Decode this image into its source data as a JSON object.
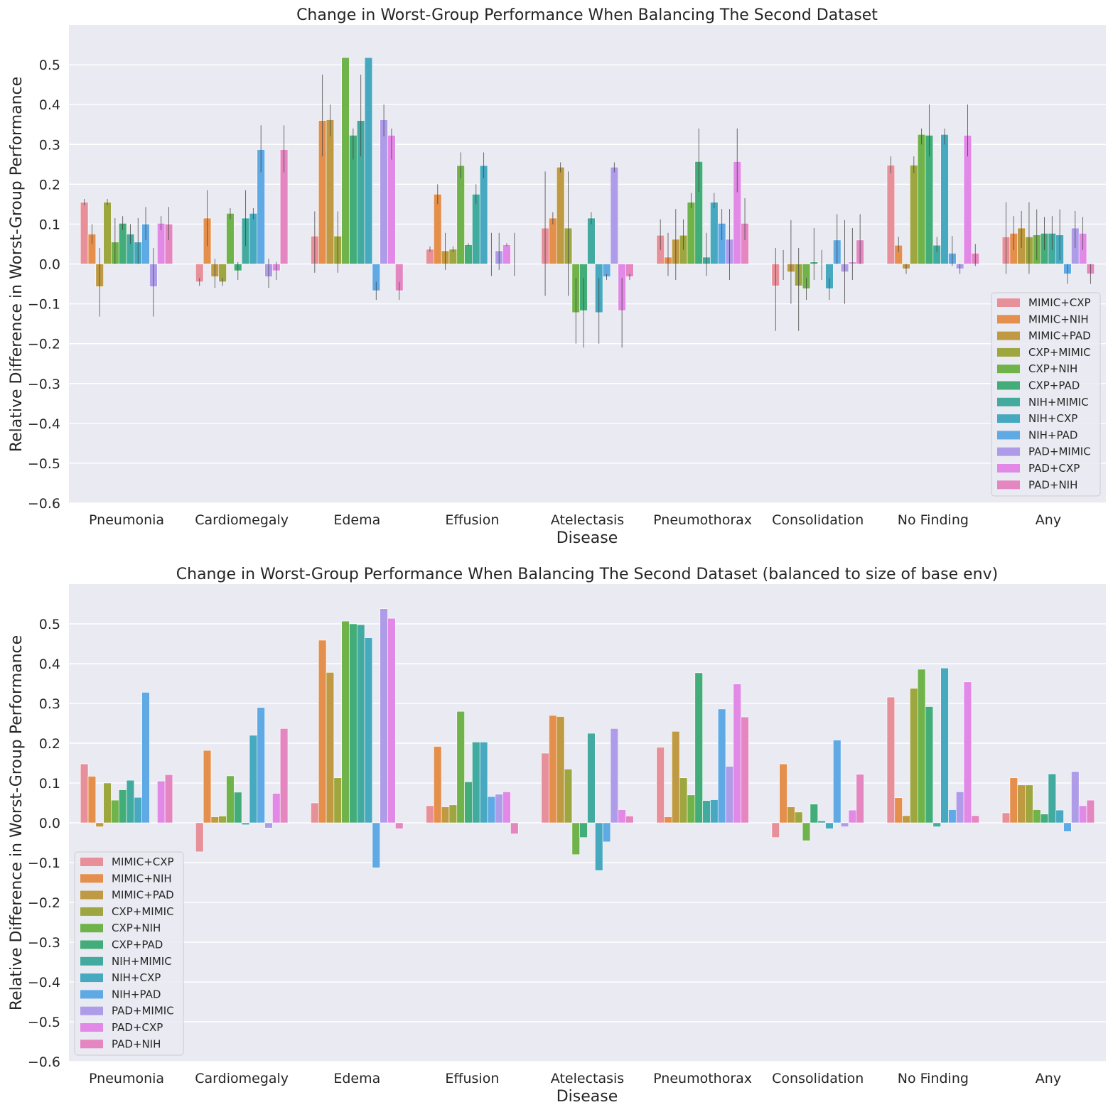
{
  "chart_data": [
    {
      "type": "bar",
      "title": "Change in Worst-Group Performance When Balancing The Second Dataset",
      "xlabel": "Disease",
      "ylabel": "Relative Difference in Worst-Group Performance",
      "ylim": [
        -0.6,
        0.6
      ],
      "yticks": [
        -0.6,
        -0.5,
        -0.4,
        -0.3,
        -0.2,
        -0.1,
        0.0,
        0.1,
        0.2,
        0.3,
        0.4,
        0.5
      ],
      "ytick_labels": [
        "−0.6",
        "−0.5",
        "−0.4",
        "−0.3",
        "−0.2",
        "−0.1",
        "0.0",
        "0.1",
        "0.2",
        "0.3",
        "0.4",
        "0.5"
      ],
      "legend_location": "lower right",
      "categories": [
        "Pneumonia",
        "Cardiomegaly",
        "Edema",
        "Effusion",
        "Atelectasis",
        "Pneumothorax",
        "Consolidation",
        "No Finding",
        "Any"
      ],
      "series": [
        {
          "name": "MIMIC+CXP",
          "values": [
            0.155,
            -0.045,
            0.07,
            0.037,
            0.09,
            0.072,
            -0.055,
            0.248,
            0.068
          ],
          "err_low": [
            0.147,
            -0.055,
            -0.022,
            0.03,
            -0.08,
            0.035,
            -0.168,
            0.228,
            -0.025
          ],
          "err_high": [
            0.163,
            -0.035,
            0.132,
            0.044,
            0.232,
            0.112,
            0.04,
            0.27,
            0.155
          ]
        },
        {
          "name": "MIMIC+NIH",
          "values": [
            0.075,
            0.115,
            0.36,
            0.175,
            0.115,
            0.017,
            0.0,
            0.047,
            0.077
          ],
          "err_low": [
            0.05,
            0.045,
            0.27,
            0.15,
            0.1,
            -0.03,
            -0.04,
            0.03,
            0.035
          ],
          "err_high": [
            0.1,
            0.185,
            0.475,
            0.2,
            0.13,
            0.078,
            0.035,
            0.068,
            0.12
          ]
        },
        {
          "name": "MIMIC+PAD",
          "values": [
            -0.057,
            -0.032,
            0.362,
            0.033,
            0.243,
            0.062,
            -0.02,
            -0.012,
            0.09
          ],
          "err_low": [
            -0.132,
            -0.06,
            0.32,
            -0.015,
            0.23,
            -0.04,
            -0.1,
            -0.025,
            0.04
          ],
          "err_high": [
            0.04,
            0.013,
            0.4,
            0.078,
            0.255,
            0.138,
            0.11,
            0.0,
            0.133
          ]
        },
        {
          "name": "CXP+MIMIC",
          "values": [
            0.155,
            -0.045,
            0.07,
            0.037,
            0.09,
            0.072,
            -0.055,
            0.248,
            0.068
          ],
          "err_low": [
            0.147,
            -0.055,
            -0.022,
            0.03,
            -0.08,
            0.035,
            -0.168,
            0.228,
            -0.025
          ],
          "err_high": [
            0.163,
            -0.035,
            0.132,
            0.044,
            0.232,
            0.112,
            0.04,
            0.27,
            0.155
          ]
        },
        {
          "name": "CXP+NIH",
          "values": [
            0.055,
            0.127,
            0.518,
            0.247,
            -0.122,
            0.155,
            -0.062,
            0.325,
            0.073
          ],
          "err_low": [
            0.0,
            0.112,
            0.59,
            0.215,
            -0.2,
            0.14,
            -0.09,
            0.3,
            0.01
          ],
          "err_high": [
            0.115,
            0.14,
            0.59,
            0.28,
            -0.035,
            0.178,
            -0.035,
            0.34,
            0.137
          ]
        },
        {
          "name": "CXP+PAD",
          "values": [
            0.102,
            -0.017,
            0.323,
            0.048,
            -0.117,
            0.257,
            0.005,
            0.323,
            0.077
          ],
          "err_low": [
            0.085,
            -0.04,
            0.262,
            0.045,
            -0.21,
            0.18,
            -0.04,
            0.27,
            0.035
          ],
          "err_high": [
            0.12,
            0.005,
            0.34,
            0.052,
            -0.035,
            0.34,
            0.09,
            0.4,
            0.118
          ]
        },
        {
          "name": "NIH+MIMIC",
          "values": [
            0.075,
            0.115,
            0.36,
            0.175,
            0.115,
            0.017,
            0.0,
            0.047,
            0.077
          ],
          "err_low": [
            0.05,
            0.045,
            0.27,
            0.15,
            0.1,
            -0.03,
            -0.04,
            0.03,
            0.035
          ],
          "err_high": [
            0.1,
            0.185,
            0.475,
            0.2,
            0.13,
            0.078,
            0.035,
            0.068,
            0.12
          ]
        },
        {
          "name": "NIH+CXP",
          "values": [
            0.055,
            0.127,
            0.518,
            0.247,
            -0.122,
            0.155,
            -0.062,
            0.325,
            0.073
          ],
          "err_low": [
            0.0,
            0.112,
            0.59,
            0.215,
            -0.2,
            0.14,
            -0.09,
            0.3,
            0.01
          ],
          "err_high": [
            0.115,
            0.14,
            0.59,
            0.28,
            -0.035,
            0.178,
            -0.035,
            0.34,
            0.137
          ]
        },
        {
          "name": "NIH+PAD",
          "values": [
            0.1,
            0.287,
            -0.067,
            0.0,
            -0.032,
            0.102,
            0.06,
            0.027,
            -0.025
          ],
          "err_low": [
            0.06,
            0.23,
            -0.09,
            -0.03,
            -0.04,
            0.06,
            0.0,
            -0.005,
            -0.05
          ],
          "err_high": [
            0.143,
            0.348,
            -0.045,
            0.078,
            -0.025,
            0.138,
            0.125,
            0.07,
            0.0
          ]
        },
        {
          "name": "PAD+MIMIC",
          "values": [
            -0.057,
            -0.032,
            0.362,
            0.033,
            0.243,
            0.062,
            -0.02,
            -0.012,
            0.09
          ],
          "err_low": [
            -0.132,
            -0.06,
            0.32,
            -0.015,
            0.23,
            -0.04,
            -0.1,
            -0.025,
            0.04
          ],
          "err_high": [
            0.04,
            0.013,
            0.4,
            0.078,
            0.255,
            0.138,
            0.11,
            0.0,
            0.133
          ]
        },
        {
          "name": "PAD+CXP",
          "values": [
            0.102,
            -0.017,
            0.323,
            0.048,
            -0.117,
            0.257,
            0.005,
            0.323,
            0.077
          ],
          "err_low": [
            0.085,
            -0.04,
            0.262,
            0.045,
            -0.21,
            0.18,
            -0.04,
            0.27,
            0.035
          ],
          "err_high": [
            0.12,
            0.005,
            0.34,
            0.052,
            -0.035,
            0.34,
            0.09,
            0.4,
            0.118
          ]
        },
        {
          "name": "PAD+NIH",
          "values": [
            0.1,
            0.287,
            -0.067,
            0.0,
            -0.032,
            0.102,
            0.06,
            0.027,
            -0.025
          ],
          "err_low": [
            0.06,
            0.23,
            -0.09,
            -0.03,
            -0.04,
            0.06,
            0.0,
            -0.005,
            -0.05
          ],
          "err_high": [
            0.143,
            0.348,
            -0.045,
            0.078,
            -0.025,
            0.165,
            0.125,
            0.05,
            0.0
          ]
        }
      ]
    },
    {
      "type": "bar",
      "title": "Change in Worst-Group Performance When Balancing The Second Dataset (balanced to size of base env)",
      "xlabel": "Disease",
      "ylabel": "Relative Difference in Worst-Group Performance",
      "ylim": [
        -0.6,
        0.6
      ],
      "yticks": [
        -0.6,
        -0.5,
        -0.4,
        -0.3,
        -0.2,
        -0.1,
        0.0,
        0.1,
        0.2,
        0.3,
        0.4,
        0.5
      ],
      "ytick_labels": [
        "−0.6",
        "−0.5",
        "−0.4",
        "−0.3",
        "−0.2",
        "−0.1",
        "0.0",
        "0.1",
        "0.2",
        "0.3",
        "0.4",
        "0.5"
      ],
      "legend_location": "lower left",
      "categories": [
        "Pneumonia",
        "Cardiomegaly",
        "Edema",
        "Effusion",
        "Atelectasis",
        "Pneumothorax",
        "Consolidation",
        "No Finding",
        "Any"
      ],
      "series": [
        {
          "name": "MIMIC+CXP",
          "values": [
            0.148,
            -0.073,
            0.05,
            0.043,
            0.175,
            0.19,
            -0.037,
            0.316,
            0.025
          ]
        },
        {
          "name": "MIMIC+NIH",
          "values": [
            0.117,
            0.182,
            0.459,
            0.192,
            0.27,
            0.015,
            0.148,
            0.063,
            0.113
          ]
        },
        {
          "name": "MIMIC+PAD",
          "values": [
            -0.01,
            0.015,
            0.378,
            0.04,
            0.267,
            0.23,
            0.04,
            0.018,
            0.095
          ]
        },
        {
          "name": "CXP+MIMIC",
          "values": [
            0.1,
            0.017,
            0.113,
            0.045,
            0.135,
            0.113,
            0.027,
            0.338,
            0.095
          ]
        },
        {
          "name": "CXP+NIH",
          "values": [
            0.057,
            0.118,
            0.507,
            0.28,
            -0.08,
            0.07,
            -0.045,
            0.386,
            0.033
          ]
        },
        {
          "name": "CXP+PAD",
          "values": [
            0.083,
            0.077,
            0.5,
            0.103,
            -0.037,
            0.377,
            0.047,
            0.292,
            0.022
          ]
        },
        {
          "name": "NIH+MIMIC",
          "values": [
            0.107,
            -0.005,
            0.498,
            0.203,
            0.225,
            0.056,
            0.005,
            -0.01,
            0.123
          ]
        },
        {
          "name": "NIH+CXP",
          "values": [
            0.064,
            0.22,
            0.465,
            0.203,
            -0.12,
            0.058,
            -0.015,
            0.389,
            0.032
          ]
        },
        {
          "name": "NIH+PAD",
          "values": [
            0.328,
            0.29,
            -0.113,
            0.066,
            -0.048,
            0.286,
            0.208,
            0.033,
            -0.022
          ]
        },
        {
          "name": "PAD+MIMIC",
          "values": [
            0.0,
            -0.013,
            0.538,
            0.072,
            0.237,
            0.142,
            -0.01,
            0.078,
            0.129
          ]
        },
        {
          "name": "PAD+CXP",
          "values": [
            0.105,
            0.074,
            0.514,
            0.078,
            0.033,
            0.349,
            0.032,
            0.354,
            0.043
          ]
        },
        {
          "name": "PAD+NIH",
          "values": [
            0.121,
            0.237,
            -0.015,
            -0.028,
            0.017,
            0.266,
            0.122,
            0.018,
            0.057
          ]
        }
      ]
    }
  ],
  "colors": {
    "MIMIC+CXP": "#e8909a",
    "MIMIC+NIH": "#e58f4d",
    "MIMIC+PAD": "#bf9a43",
    "CXP+MIMIC": "#9ea63f",
    "CXP+NIH": "#6fb34a",
    "CXP+PAD": "#43ad79",
    "NIH+MIMIC": "#43aa9f",
    "NIH+CXP": "#47a9bf",
    "NIH+PAD": "#5fa9e4",
    "PAD+MIMIC": "#ae9ce9",
    "PAD+CXP": "#e288e6",
    "PAD+NIH": "#e487c1"
  }
}
